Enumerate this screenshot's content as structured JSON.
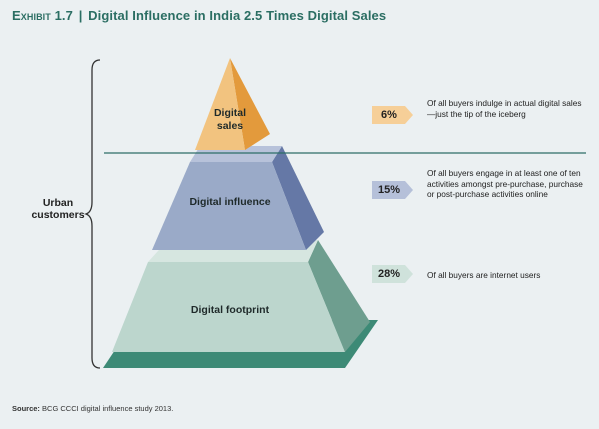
{
  "title": {
    "exhibit": "Exhibit 1.7",
    "separator": "|",
    "text": "Digital Influence in India 2.5 Times Digital Sales"
  },
  "brace_label": "Urban customers",
  "tiers": [
    {
      "label": "Digital sales",
      "percent": "6%",
      "description": "Of all buyers indulge in actual digital sales—just the tip of the iceberg",
      "colors": {
        "front": "#f2c37f",
        "side": "#e39a3c",
        "badge": "#f6cf98"
      }
    },
    {
      "label": "Digital influence",
      "percent": "15%",
      "description": "Of all buyers engage in at least one of ten activities amongst pre-purchase, purchase or post-purchase activities online",
      "colors": {
        "front": "#9aaac8",
        "side": "#6578a6",
        "top": "#b7c2da",
        "badge": "#b5c0d9"
      }
    },
    {
      "label": "Digital footprint",
      "percent": "28%",
      "description": "Of all buyers are internet users",
      "colors": {
        "front": "#bcd6cd",
        "side": "#6e9e8f",
        "top": "#d6e6e0",
        "base": "#3d8a76",
        "badge": "#cfe2db"
      }
    }
  ],
  "source": {
    "label": "Source:",
    "text": "BCG CCCI digital influence study 2013."
  }
}
